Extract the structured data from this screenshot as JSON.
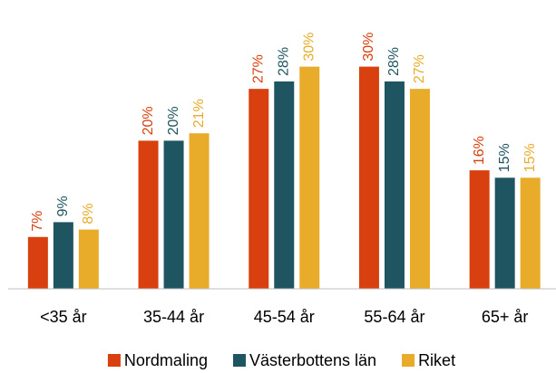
{
  "chart_data": {
    "type": "bar",
    "categories": [
      "<35 år",
      "35-44 år",
      "45-54 år",
      "55-64 år",
      "65+ år"
    ],
    "series": [
      {
        "name": "Nordmaling",
        "color": "#d9400f",
        "values": [
          7,
          20,
          27,
          30,
          16
        ],
        "value_labels": [
          "7%",
          "20%",
          "27%",
          "30%",
          "16%"
        ]
      },
      {
        "name": "Västerbottens län",
        "color": "#1f5560",
        "values": [
          9,
          20,
          28,
          28,
          15
        ],
        "value_labels": [
          "9%",
          "20%",
          "28%",
          "28%",
          "15%"
        ]
      },
      {
        "name": "Riket",
        "color": "#e8ab2a",
        "values": [
          8,
          21,
          30,
          27,
          15
        ],
        "value_labels": [
          "8%",
          "21%",
          "30%",
          "27%",
          "15%"
        ]
      }
    ],
    "ylim": [
      0,
      39
    ],
    "legend": "bottom"
  }
}
